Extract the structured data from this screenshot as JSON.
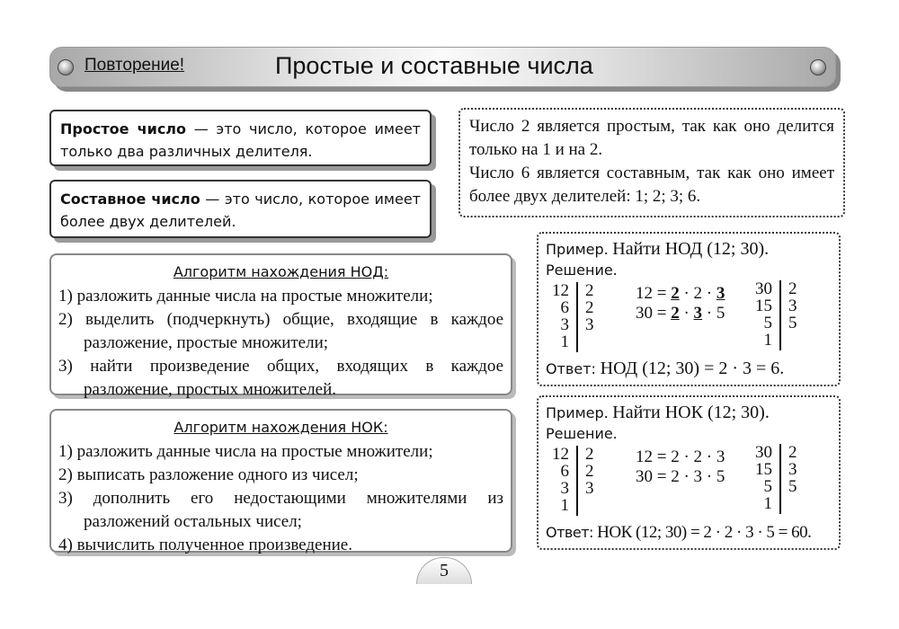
{
  "header": {
    "review_label": "Повторение!",
    "title": "Простые и составные числа"
  },
  "definitions": [
    {
      "term": "Простое число",
      "text": " — это число, которое имеет только два различных делителя."
    },
    {
      "term": "Составное число",
      "text": " — это число, которое имеет более двух делителей."
    }
  ],
  "note": {
    "line1": "Число 2 является простым, так как оно делится только на 1 и на 2.",
    "line2": "Число 6 является составным, так как оно имеет более двух делителей: 1; 2; 3; 6."
  },
  "gcd_algo": {
    "title": "Алгоритм нахождения НОД:",
    "steps": [
      "1) разложить данные числа на простые множители;",
      "2) выделить (подчеркнуть) общие, входящие в каждое разложение, простые множители;",
      "3) найти произведение общих, входящих в каждое разложение, простых множителей."
    ]
  },
  "lcm_algo": {
    "title": "Алгоритм нахождения НОК:",
    "steps": [
      "1) разложить данные числа на простые множители;",
      "2) выписать разложение одного из чисел;",
      "3) дополнить его недостающими множителями из разложений остальных чисел;",
      "4) вычислить полученное произведение."
    ]
  },
  "example_labels": {
    "example": "Пример.",
    "solution": "Решение.",
    "answer": "Ответ:"
  },
  "gcd_example": {
    "task": "Найти НОД (12; 30).",
    "answer": "НОД (12; 30) = 2 · 3 = 6."
  },
  "lcm_example": {
    "task": "Найти НОК (12; 30).",
    "eq12": "12 = 2 · 2 · 3",
    "eq30": "30 = 2 · 3 · 5",
    "answer": "НОК (12; 30) = 2 · 2 · 3 · 5 = 60."
  },
  "factor12": {
    "left": [
      "12",
      "6",
      "3",
      "1"
    ],
    "right": [
      "2",
      "2",
      "3"
    ]
  },
  "factor30": {
    "left": [
      "30",
      "15",
      "5",
      "1"
    ],
    "right": [
      "2",
      "3",
      "5"
    ]
  },
  "page_number": "5"
}
